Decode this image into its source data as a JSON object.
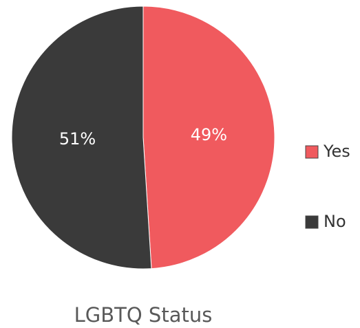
{
  "chart_data": {
    "type": "pie",
    "title": "LGBTQ Status",
    "categories": [
      "Yes",
      "No"
    ],
    "values": [
      49,
      51
    ],
    "value_labels": [
      "49%",
      "51%"
    ],
    "colors": [
      "#f05a5e",
      "#3a3a3a"
    ],
    "legend": "right"
  }
}
